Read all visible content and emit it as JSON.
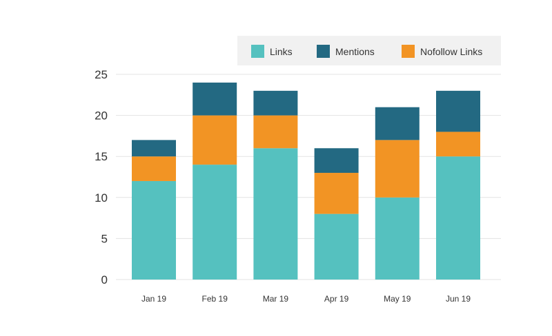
{
  "chart_data": {
    "type": "bar",
    "stacked": true,
    "categories": [
      "Jan 19",
      "Feb 19",
      "Mar 19",
      "Apr 19",
      "May 19",
      "Jun 19"
    ],
    "series": [
      {
        "name": "Links",
        "color": "#55c1bf",
        "values": [
          12,
          14,
          16,
          8,
          10,
          15
        ]
      },
      {
        "name": "Nofollow Links",
        "color": "#f29424",
        "values": [
          3,
          6,
          4,
          5,
          7,
          3
        ]
      },
      {
        "name": "Mentions",
        "color": "#236982",
        "values": [
          2,
          4,
          3,
          3,
          4,
          5
        ]
      }
    ],
    "legend_order": [
      "Links",
      "Mentions",
      "Nofollow Links"
    ],
    "yticks": [
      0,
      5,
      10,
      15,
      20,
      25
    ],
    "ylim": [
      0,
      25
    ],
    "grid": true,
    "legend_position": "top-right"
  }
}
